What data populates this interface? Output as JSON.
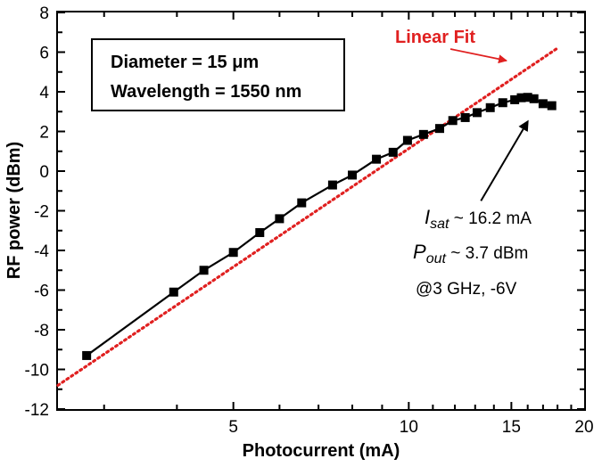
{
  "chart_data": {
    "type": "scatter",
    "xlabel": "Photocurrent (mA)",
    "ylabel": "RF power (dBm)",
    "xscale": "log",
    "xlim": [
      2.5,
      20
    ],
    "ylim": [
      -12,
      8
    ],
    "xticks": [
      5,
      10,
      15,
      20
    ],
    "yticks": [
      8,
      6,
      4,
      2,
      0,
      -2,
      -4,
      -6,
      -8,
      -10,
      -12
    ],
    "grid": false,
    "series": [
      {
        "marker": "square",
        "color": "#000000",
        "points": [
          [
            2.8,
            -9.3
          ],
          [
            3.95,
            -6.1
          ],
          [
            4.45,
            -5.0
          ],
          [
            5.0,
            -4.1
          ],
          [
            5.55,
            -3.1
          ],
          [
            6.0,
            -2.4
          ],
          [
            6.55,
            -1.6
          ],
          [
            7.4,
            -0.7
          ],
          [
            8.0,
            -0.2
          ],
          [
            8.8,
            0.6
          ],
          [
            9.4,
            0.95
          ],
          [
            9.95,
            1.55
          ],
          [
            10.6,
            1.85
          ],
          [
            11.3,
            2.15
          ],
          [
            11.9,
            2.55
          ],
          [
            12.5,
            2.7
          ],
          [
            13.1,
            2.95
          ],
          [
            13.8,
            3.2
          ],
          [
            14.5,
            3.45
          ],
          [
            15.2,
            3.6
          ],
          [
            15.6,
            3.7
          ],
          [
            16.0,
            3.72
          ],
          [
            16.4,
            3.65
          ],
          [
            17.0,
            3.4
          ],
          [
            17.6,
            3.3
          ]
        ]
      }
    ],
    "fit_line": {
      "label": "Linear Fit",
      "color": "#e02020",
      "style": "dotted",
      "points": [
        [
          2.5,
          -10.8
        ],
        [
          18.0,
          6.2
        ]
      ]
    },
    "info_box": [
      "Diameter = 15 μm",
      "Wavelength = 1550 nm"
    ],
    "annotation": {
      "isat_symbol": "I",
      "isat_sub": "sat",
      "isat_value": " ~ 16.2 mA",
      "pout_symbol": "P",
      "pout_sub": "out",
      "pout_value": " ~ 3.7 dBm",
      "condition": "@3 GHz, -6V",
      "target_point": [
        16.0,
        2.5
      ],
      "from_point": [
        13.3,
        -1.5
      ]
    }
  }
}
